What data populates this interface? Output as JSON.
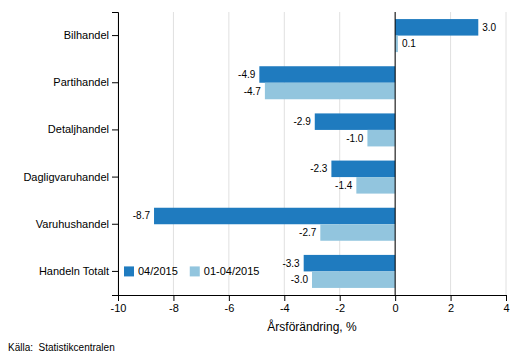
{
  "chart_data": {
    "type": "bar",
    "orientation": "horizontal",
    "categories": [
      "Handeln Totalt",
      "Varuhushandel",
      "Dagligvaruhandel",
      "Detaljhandel",
      "Partihandel",
      "Bilhandel"
    ],
    "series": [
      {
        "name": "04/2015",
        "color": "#1f7bbf",
        "values": [
          -3.3,
          -8.7,
          -2.3,
          -2.9,
          -4.9,
          3.0
        ],
        "value_labels": [
          "-3.3",
          "-8.7",
          "-2.3",
          "-2.9",
          "-4.9",
          "3.0"
        ]
      },
      {
        "name": "01-04/2015",
        "color": "#92c5de",
        "values": [
          -3.0,
          -2.7,
          -1.4,
          -1.0,
          -4.7,
          0.1
        ],
        "value_labels": [
          "-3.0",
          "-2.7",
          "-1.4",
          "-1.0",
          "-4.7",
          "0.1"
        ]
      }
    ],
    "xlabel": "Årsförändring, %",
    "xlim": [
      -10,
      4
    ],
    "xticks": [
      -10,
      -8,
      -6,
      -4,
      -2,
      0,
      2,
      4
    ],
    "grid": true,
    "data_labels": true,
    "legend": "lower left",
    "source": "Källa:  Statistikcentralen"
  }
}
